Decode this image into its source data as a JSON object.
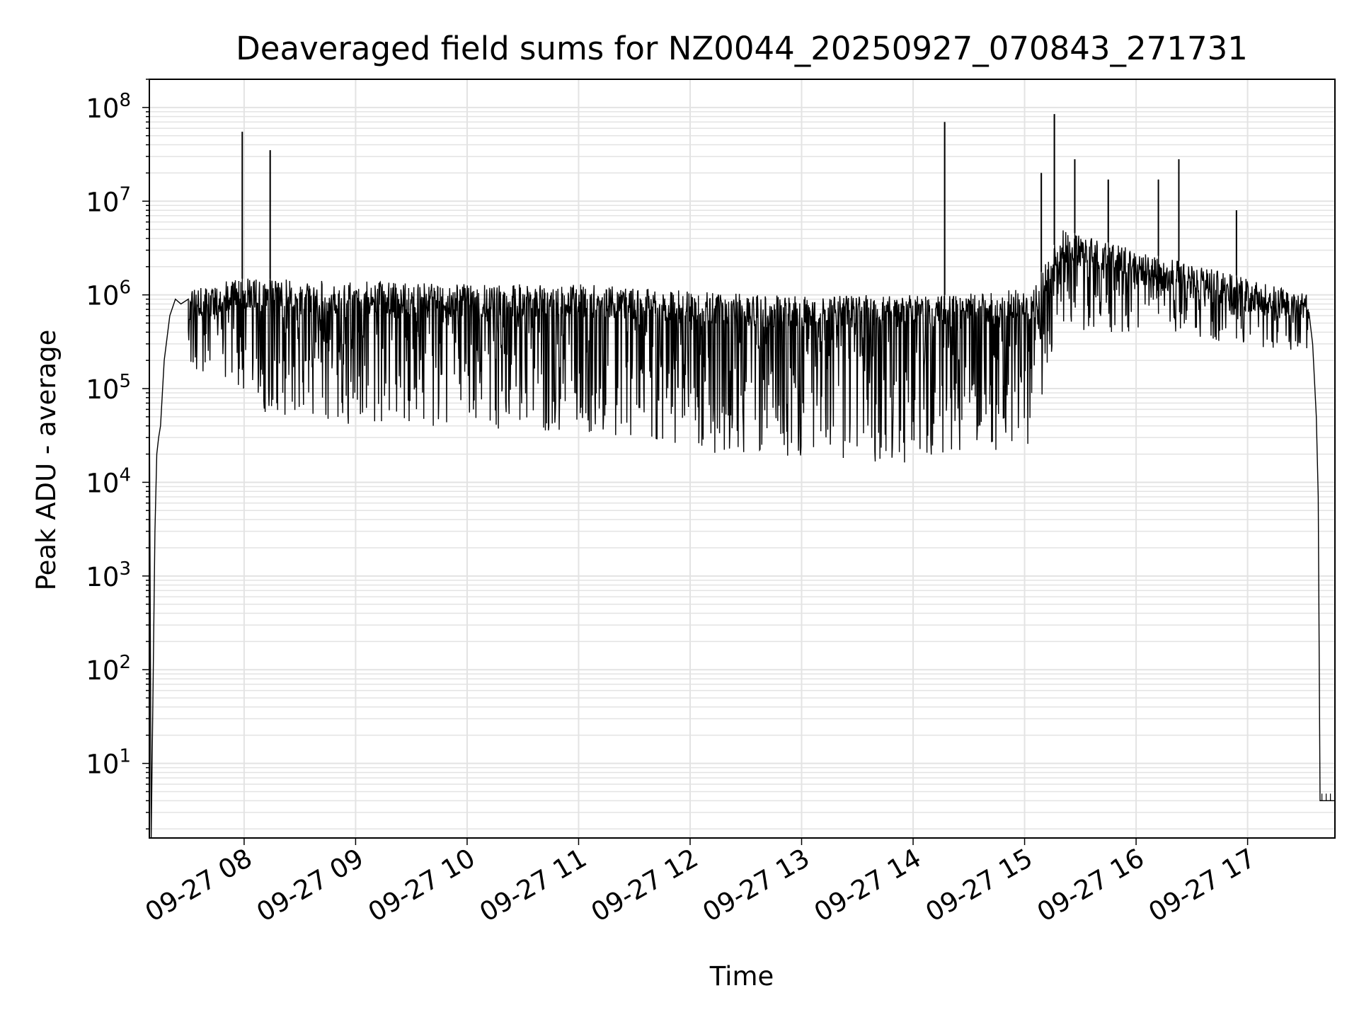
{
  "chart_data": {
    "type": "line",
    "title": "Deaveraged field sums for NZ0044_20250927_070843_271731",
    "xlabel": "Time",
    "ylabel": "Peak ADU - average",
    "x_ticks": [
      "09-27 08",
      "09-27 09",
      "09-27 10",
      "09-27 11",
      "09-27 12",
      "09-27 13",
      "09-27 14",
      "09-27 15",
      "09-27 16",
      "09-27 17"
    ],
    "y_scale": "log",
    "y_ticks": [
      {
        "base": "10",
        "exp": "1"
      },
      {
        "base": "10",
        "exp": "2"
      },
      {
        "base": "10",
        "exp": "3"
      },
      {
        "base": "10",
        "exp": "4"
      },
      {
        "base": "10",
        "exp": "5"
      },
      {
        "base": "10",
        "exp": "6"
      },
      {
        "base": "10",
        "exp": "7"
      },
      {
        "base": "10",
        "exp": "8"
      }
    ],
    "xlim": [
      "2025-09-27 07:09",
      "2025-09-27 17:47"
    ],
    "ylim": [
      1.6,
      200000000
    ],
    "grid": true,
    "line_color": "#000000",
    "grid_color": "#e3e3e3",
    "series": [
      {
        "x": [
          "2025-09-27 07:09",
          "2025-09-27 07:10",
          "2025-09-27 07:11",
          "2025-09-27 07:12",
          "2025-09-27 07:13",
          "2025-09-27 07:14",
          "2025-09-27 07:15",
          "2025-09-27 07:17",
          "2025-09-27 07:20",
          "2025-09-27 07:23",
          "2025-09-27 07:26",
          "2025-09-27 07:30",
          "2025-09-27 07:34",
          "2025-09-27 07:38",
          "2025-09-27 07:43",
          "2025-09-27 07:50",
          "2025-09-27 07:58",
          "2025-09-27 08:05",
          "2025-09-27 08:10",
          "2025-09-27 08:15",
          "2025-09-27 08:20",
          "2025-09-27 08:30",
          "2025-09-27 09:00",
          "2025-09-27 09:10",
          "2025-09-27 09:30",
          "2025-09-27 10:00",
          "2025-09-27 10:30",
          "2025-09-27 11:00",
          "2025-09-27 11:30",
          "2025-09-27 12:00",
          "2025-09-27 12:30",
          "2025-09-27 12:55",
          "2025-09-27 13:10",
          "2025-09-27 13:30",
          "2025-09-27 14:00",
          "2025-09-27 14:17",
          "2025-09-27 14:20",
          "2025-09-27 14:30",
          "2025-09-27 14:45",
          "2025-09-27 15:00",
          "2025-09-27 15:10",
          "2025-09-27 15:15",
          "2025-09-27 15:25",
          "2025-09-27 15:40",
          "2025-09-27 16:00",
          "2025-09-27 16:15",
          "2025-09-27 16:30",
          "2025-09-27 16:45",
          "2025-09-27 17:00",
          "2025-09-27 17:10",
          "2025-09-27 17:20",
          "2025-09-27 17:30",
          "2025-09-27 17:35",
          "2025-09-27 17:37",
          "2025-09-27 17:38",
          "2025-09-27 17:39",
          "2025-09-27 17:40",
          "2025-09-27 17:47"
        ],
        "y": [
          100000,
          1.6,
          70,
          3000,
          20000,
          30000,
          40000,
          200000,
          600000,
          900000,
          800000,
          900000,
          700000,
          1000000,
          1000000,
          900000,
          1200000,
          1100000,
          1000000,
          900000,
          900000,
          800000,
          700000,
          700000,
          700000,
          800000,
          700000,
          700000,
          600000,
          500000,
          500000,
          450000,
          500000,
          550000,
          600000,
          700000,
          600000,
          700000,
          700000,
          800000,
          900000,
          1000000,
          1200000,
          1500000,
          1200000,
          1500000,
          1200000,
          1000000,
          800000,
          700000,
          700000,
          600000,
          300000,
          50000,
          7000,
          4,
          4,
          4
        ]
      }
    ],
    "spikes": [
      {
        "x": "2025-09-27 07:59",
        "y": 55000000
      },
      {
        "x": "2025-09-27 08:14",
        "y": 35000000
      },
      {
        "x": "2025-09-27 14:17",
        "y": 70000000
      },
      {
        "x": "2025-09-27 15:16",
        "y": 85000000
      },
      {
        "x": "2025-09-27 15:27",
        "y": 28000000
      },
      {
        "x": "2025-09-27 16:23",
        "y": 28000000
      },
      {
        "x": "2025-09-27 15:09",
        "y": 20000000
      },
      {
        "x": "2025-09-27 15:45",
        "y": 17000000
      },
      {
        "x": "2025-09-27 16:12",
        "y": 17000000
      },
      {
        "x": "2025-09-27 16:54",
        "y": 8000000
      }
    ],
    "band_floor": [
      {
        "x": "2025-09-27 07:30",
        "y": 150000
      },
      {
        "x": "2025-09-27 08:00",
        "y": 60000
      },
      {
        "x": "2025-09-27 09:00",
        "y": 40000
      },
      {
        "x": "2025-09-27 10:00",
        "y": 40000
      },
      {
        "x": "2025-09-27 11:00",
        "y": 30000
      },
      {
        "x": "2025-09-27 12:00",
        "y": 20000
      },
      {
        "x": "2025-09-27 12:40",
        "y": 20000
      },
      {
        "x": "2025-09-27 13:00",
        "y": 18000
      },
      {
        "x": "2025-09-27 14:00",
        "y": 15000
      },
      {
        "x": "2025-09-27 14:20",
        "y": 20000
      },
      {
        "x": "2025-09-27 15:05",
        "y": 22000
      },
      {
        "x": "2025-09-27 15:20",
        "y": 400000
      },
      {
        "x": "2025-09-27 16:00",
        "y": 400000
      },
      {
        "x": "2025-09-27 17:00",
        "y": 300000
      },
      {
        "x": "2025-09-27 17:33",
        "y": 200000
      }
    ],
    "band_ceiling": [
      {
        "x": "2025-09-27 07:30",
        "y": 1200000
      },
      {
        "x": "2025-09-27 08:00",
        "y": 1500000
      },
      {
        "x": "2025-09-27 09:00",
        "y": 1400000
      },
      {
        "x": "2025-09-27 10:00",
        "y": 1300000
      },
      {
        "x": "2025-09-27 11:00",
        "y": 1300000
      },
      {
        "x": "2025-09-27 12:00",
        "y": 1100000
      },
      {
        "x": "2025-09-27 12:40",
        "y": 1000000
      },
      {
        "x": "2025-09-27 13:00",
        "y": 1000000
      },
      {
        "x": "2025-09-27 14:00",
        "y": 1000000
      },
      {
        "x": "2025-09-27 14:20",
        "y": 1000000
      },
      {
        "x": "2025-09-27 15:05",
        "y": 1200000
      },
      {
        "x": "2025-09-27 15:20",
        "y": 5000000
      },
      {
        "x": "2025-09-27 16:00",
        "y": 3000000
      },
      {
        "x": "2025-09-27 17:00",
        "y": 1500000
      },
      {
        "x": "2025-09-27 17:33",
        "y": 1000000
      }
    ]
  }
}
